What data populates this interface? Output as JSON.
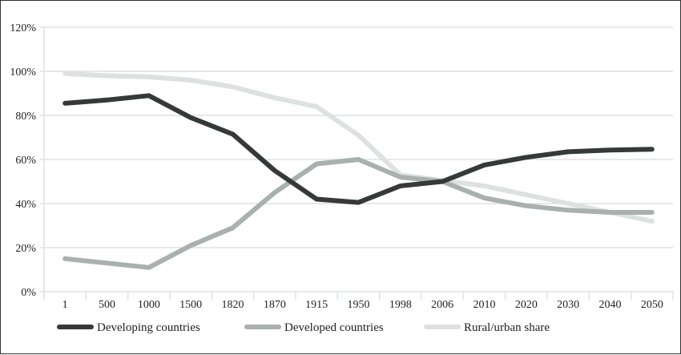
{
  "chart_data": {
    "type": "line",
    "title": "",
    "xlabel": "",
    "ylabel": "",
    "categories": [
      "1",
      "500",
      "1000",
      "1500",
      "1820",
      "1870",
      "1915",
      "1950",
      "1998",
      "2006",
      "2010",
      "2020",
      "2030",
      "2040",
      "2050"
    ],
    "ylim": [
      0,
      120
    ],
    "yticks": [
      "0%",
      "20%",
      "40%",
      "60%",
      "80%",
      "100%",
      "120%"
    ],
    "ytick_values": [
      0,
      20,
      40,
      60,
      80,
      100,
      120
    ],
    "grid": true,
    "legend_position": "bottom",
    "series": [
      {
        "name": "Developing countries",
        "color": "#353a39",
        "values": [
          85.5,
          87,
          89,
          79,
          71.5,
          55,
          42,
          40.5,
          48,
          50,
          57.5,
          61,
          63.5,
          64.3,
          64.6
        ]
      },
      {
        "name": "Developed countries",
        "color": "#a8b1ad",
        "values": [
          15,
          13,
          11,
          21,
          29,
          45,
          58,
          60,
          52,
          50,
          42.5,
          39,
          37,
          36,
          36
        ]
      },
      {
        "name": "Rural/urban share",
        "color": "#dde1df",
        "values": [
          99,
          98,
          97.5,
          96,
          93,
          88,
          84,
          71,
          53,
          50.5,
          48,
          44,
          40,
          36,
          32
        ]
      }
    ]
  }
}
